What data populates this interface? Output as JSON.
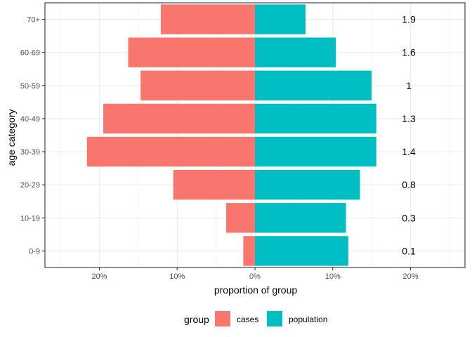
{
  "chart_data": {
    "type": "bar",
    "orientation": "horizontal",
    "layout": "diverging",
    "categories": [
      "0-9",
      "10-19",
      "20-29",
      "30-39",
      "40-49",
      "50-59",
      "60-69",
      "70+"
    ],
    "series": [
      {
        "name": "cases",
        "color": "#F8766D",
        "values": [
          -1.5,
          -3.7,
          -10.5,
          -21.6,
          -19.5,
          -14.7,
          -16.3,
          -12.1
        ]
      },
      {
        "name": "population",
        "color": "#00BFC4",
        "values": [
          12.0,
          11.7,
          13.5,
          15.6,
          15.6,
          15.0,
          10.4,
          6.5
        ]
      }
    ],
    "annotations": [
      "0.1",
      "0.3",
      "0.8",
      "1.4",
      "1.3",
      "1",
      "1.6",
      "1.9"
    ],
    "xlabel": "proportion of group",
    "ylabel": "age category",
    "xlim": [
      -27,
      27
    ],
    "xticks": [
      -20,
      -10,
      0,
      10,
      20
    ],
    "xtick_labels": [
      "20%",
      "10%",
      "0%",
      "10%",
      "20%"
    ],
    "grid": true,
    "legend": {
      "title": "group",
      "position": "bottom",
      "entries": [
        "cases",
        "population"
      ]
    }
  }
}
